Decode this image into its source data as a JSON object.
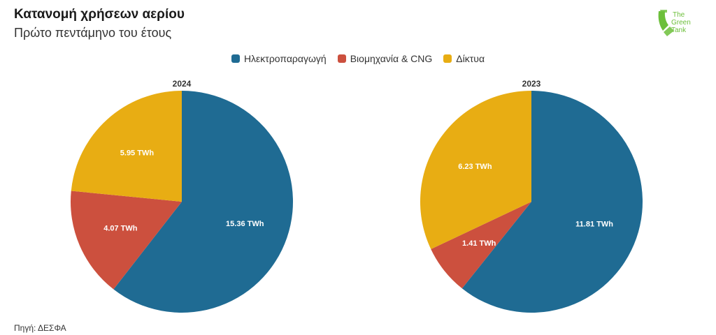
{
  "header": {
    "title": "Κατανομή χρήσεων αερίου",
    "subtitle": "Πρώτο πεντάμηνο του έτους"
  },
  "logo": {
    "icon": "the-green-tank-logo",
    "lines": [
      "The",
      "Green",
      "Tank"
    ],
    "color": "#6cbf3a"
  },
  "legend": [
    {
      "label": "Ηλεκτροπαραγωγή",
      "color": "#1f6b93"
    },
    {
      "label": "Βιομηχανία & CNG",
      "color": "#cc503e"
    },
    {
      "label": "Δίκτυα",
      "color": "#e8ad13"
    }
  ],
  "footer": {
    "source": "Πηγή: ΔΕΣΦΑ"
  },
  "chart_data": [
    {
      "type": "pie",
      "title": "2024",
      "categories": [
        "Ηλεκτροπαραγωγή",
        "Βιομηχανία & CNG",
        "Δίκτυα"
      ],
      "values": [
        15.36,
        4.07,
        5.95
      ],
      "labels": [
        "15.36 TWh",
        "4.07 TWh",
        "5.95 TWh"
      ],
      "colors": [
        "#1f6b93",
        "#cc503e",
        "#e8ad13"
      ]
    },
    {
      "type": "pie",
      "title": "2023",
      "categories": [
        "Ηλεκτροπαραγωγή",
        "Βιομηχανία & CNG",
        "Δίκτυα"
      ],
      "values": [
        11.81,
        1.41,
        6.23
      ],
      "labels": [
        "11.81 TWh",
        "1.41 TWh",
        "6.23 TWh"
      ],
      "colors": [
        "#1f6b93",
        "#cc503e",
        "#e8ad13"
      ]
    }
  ]
}
